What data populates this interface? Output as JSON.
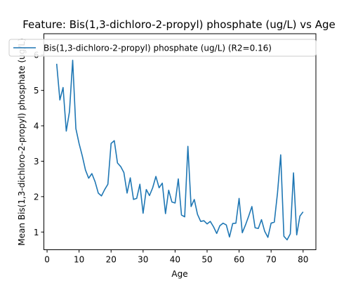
{
  "chart_data": {
    "type": "line",
    "title": "Feature: Bis(1,3-dichloro-2-propyl) phosphate (ug/L) vs Age",
    "xlabel": "Age",
    "ylabel": "Mean Bis(1,3-dichloro-2-propyl) phosphate (ug/L)",
    "xlim": [
      -1,
      84
    ],
    "ylim": [
      0.5,
      6.6
    ],
    "xticks": [
      0,
      10,
      20,
      30,
      40,
      50,
      60,
      70,
      80
    ],
    "yticks": [
      1,
      2,
      3,
      4,
      5,
      6
    ],
    "grid": false,
    "legend_position": "top-left",
    "series": [
      {
        "name": "Bis(1,3-dichloro-2-propyl) phosphate (ug/L) (R2=0.16)",
        "color": "#1f77b4",
        "x": [
          3,
          4,
          5,
          6,
          7,
          8,
          9,
          10,
          11,
          12,
          13,
          14,
          15,
          16,
          17,
          18,
          19,
          20,
          21,
          22,
          23,
          24,
          25,
          26,
          27,
          28,
          29,
          30,
          31,
          32,
          33,
          34,
          35,
          36,
          37,
          38,
          39,
          40,
          41,
          42,
          43,
          44,
          45,
          46,
          47,
          48,
          49,
          50,
          51,
          52,
          53,
          54,
          55,
          56,
          57,
          58,
          59,
          60,
          61,
          62,
          63,
          64,
          65,
          66,
          67,
          68,
          69,
          70,
          71,
          72,
          73,
          74,
          75,
          76,
          77,
          78,
          79,
          80
        ],
        "y": [
          5.75,
          4.73,
          5.08,
          3.85,
          4.4,
          5.85,
          3.92,
          3.5,
          3.15,
          2.75,
          2.52,
          2.65,
          2.42,
          2.1,
          2.02,
          2.2,
          2.35,
          3.5,
          3.58,
          2.95,
          2.85,
          2.68,
          2.1,
          2.53,
          1.92,
          1.95,
          2.35,
          1.53,
          2.2,
          2.03,
          2.25,
          2.57,
          2.25,
          2.38,
          1.52,
          2.18,
          1.85,
          1.82,
          2.5,
          1.48,
          1.43,
          3.42,
          1.72,
          1.92,
          1.5,
          1.3,
          1.32,
          1.23,
          1.3,
          1.15,
          0.96,
          1.18,
          1.25,
          1.2,
          0.86,
          1.24,
          1.25,
          1.95,
          0.98,
          1.2,
          1.45,
          1.72,
          1.12,
          1.1,
          1.35,
          1.02,
          0.85,
          1.25,
          1.28,
          2.1,
          3.18,
          0.88,
          0.78,
          0.95,
          2.67,
          0.92,
          1.45,
          1.57
        ]
      }
    ]
  }
}
